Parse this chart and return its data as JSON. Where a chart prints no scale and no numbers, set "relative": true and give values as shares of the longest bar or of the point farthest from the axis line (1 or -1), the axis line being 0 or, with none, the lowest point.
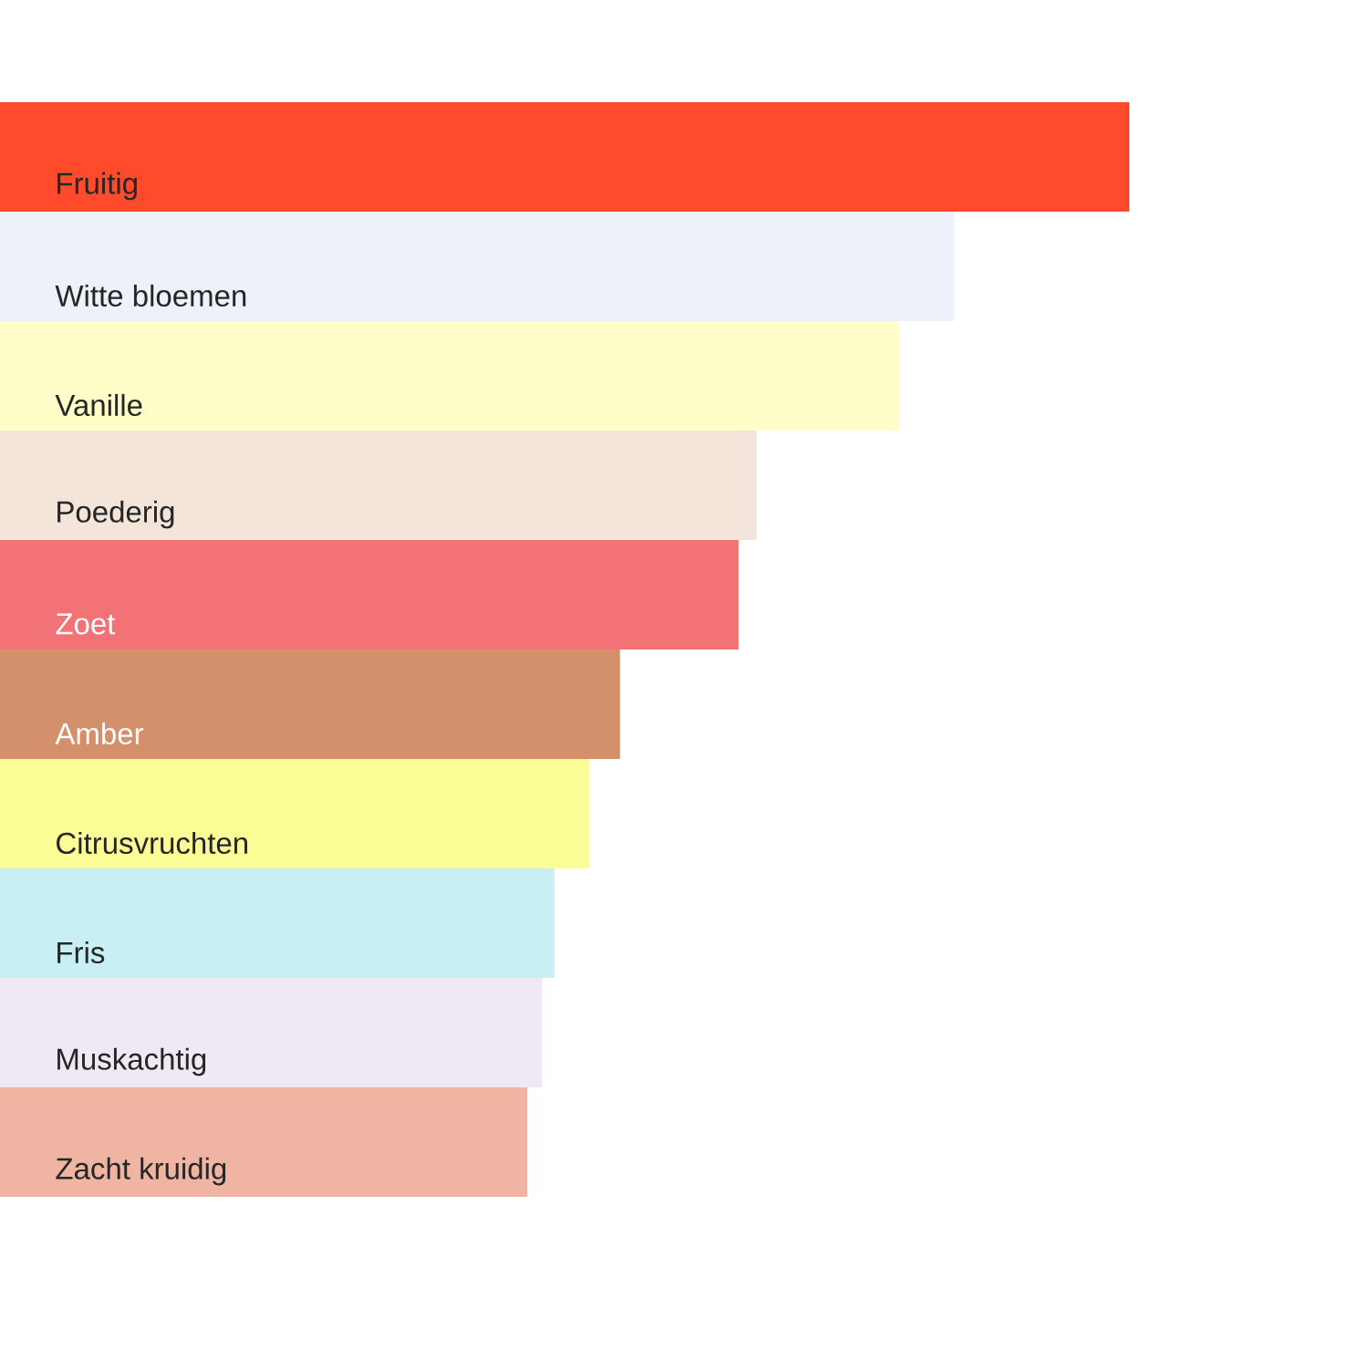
{
  "chart_data": {
    "type": "bar",
    "orientation": "horizontal",
    "relative": true,
    "categories": [
      "Fruitig",
      "Witte bloemen",
      "Vanille",
      "Poederig",
      "Zoet",
      "Amber",
      "Citrusvruchten",
      "Fris",
      "Muskachtig",
      "Zacht kruidig"
    ],
    "values": [
      1,
      0.845,
      0.796,
      0.67,
      0.654,
      0.549,
      0.522,
      0.491,
      0.48,
      0.467
    ],
    "colors": [
      "#ff4b2b",
      "#edf2fa",
      "#fffdc8",
      "#f3e5da",
      "#f37275",
      "#d4906b",
      "#fafd96",
      "#c8eff3",
      "#f0e8f3",
      "#f0b5a2"
    ]
  }
}
